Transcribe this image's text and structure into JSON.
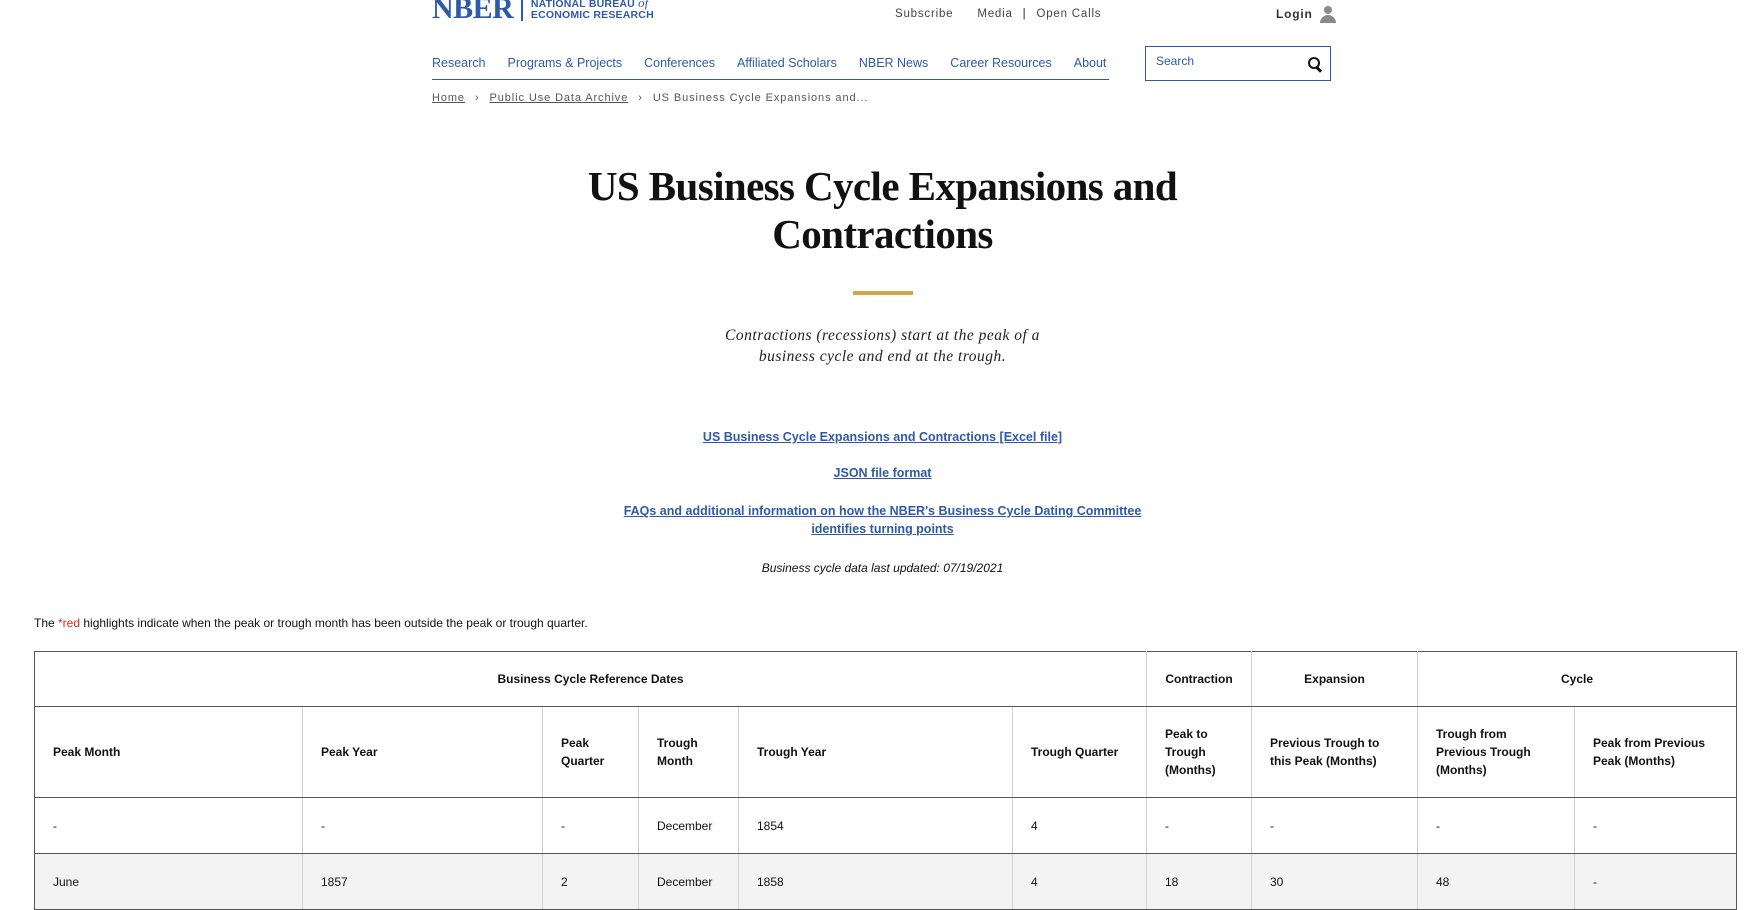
{
  "header": {
    "logo_word": "NBER",
    "logo_line1_prefix": "NATIONAL BUREAU ",
    "logo_line1_italic": "of",
    "logo_line2": "ECONOMIC RESEARCH",
    "util_links": {
      "subscribe": "Subscribe",
      "media": "Media",
      "separator": "|",
      "open_calls": "Open Calls"
    },
    "login_label": "Login",
    "nav": [
      "Research",
      "Programs & Projects",
      "Conferences",
      "Affiliated Scholars",
      "NBER News",
      "Career Resources",
      "About"
    ],
    "search": {
      "placeholder": "Search"
    }
  },
  "breadcrumb": {
    "home": "Home",
    "archive": "Public Use Data Archive",
    "current": "US Business Cycle Expansions and...",
    "chevron": "›"
  },
  "page": {
    "title_line1": "US Business Cycle Expansions and",
    "title_line2": "Contractions",
    "subtitle_line1": "Contractions (recessions) start at the peak of a",
    "subtitle_line2": "business cycle and end at the trough.",
    "links": {
      "excel": "US Business Cycle Expansions and Contractions [Excel file]",
      "json": "JSON file format",
      "faq_line1": "FAQs and additional information on how the NBER's Business Cycle Dating Committee",
      "faq_line2": "identifies turning points"
    },
    "updated": "Business cycle data last updated: 07/19/2021",
    "note_prefix": "The ",
    "note_red": "*red",
    "note_suffix": " highlights indicate when the peak or trough month has been outside the peak or trough quarter."
  },
  "table": {
    "groups": [
      "Business Cycle Reference Dates",
      "Contraction",
      "Expansion",
      "Cycle"
    ],
    "columns": [
      "Peak Month",
      "Peak Year",
      "Peak Quarter",
      "Trough Month",
      "Trough Year",
      "Trough Quarter",
      "Peak to Trough (Months)",
      "Previous Trough to this Peak (Months)",
      "Trough from Previous Trough (Months)",
      "Peak from Previous Peak (Months)"
    ],
    "rows": [
      [
        "-",
        "-",
        "-",
        "December",
        "1854",
        "4",
        "-",
        "-",
        "-",
        "-"
      ],
      [
        "June",
        "1857",
        "2",
        "December",
        "1858",
        "4",
        "18",
        "30",
        "48",
        "-"
      ]
    ]
  }
}
